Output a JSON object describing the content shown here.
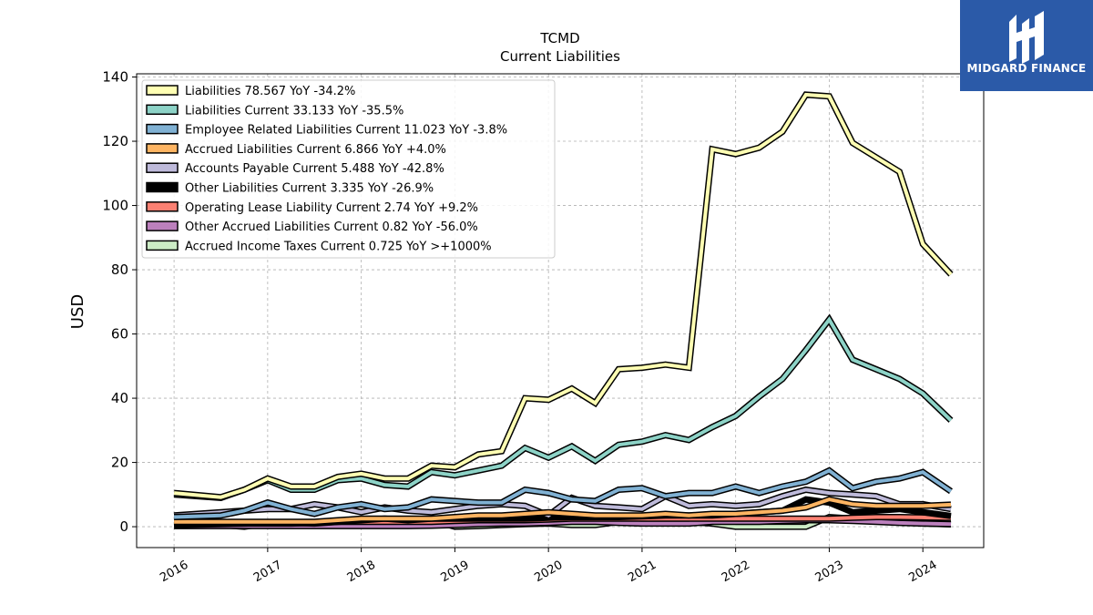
{
  "brand": {
    "name": "MIDGARD FINANCE",
    "bg_color": "#2b5aa8"
  },
  "chart_data": {
    "type": "line",
    "title": "TCMD",
    "subtitle": "Current  Liabilities",
    "ylabel": "USD",
    "xlabel": "",
    "ylim": [
      -6.5,
      141
    ],
    "xlim": [
      2015.6,
      2024.65
    ],
    "x_ticks": [
      2016,
      2017,
      2018,
      2019,
      2020,
      2021,
      2022,
      2023,
      2024
    ],
    "y_ticks": [
      0,
      20,
      40,
      60,
      80,
      100,
      120,
      140
    ],
    "grid": true,
    "legend_position": "top-left",
    "x": [
      2016.0,
      2016.5,
      2016.75,
      2017.0,
      2017.25,
      2017.5,
      2017.75,
      2018.0,
      2018.25,
      2018.5,
      2018.75,
      2019.0,
      2019.25,
      2019.5,
      2019.75,
      2020.0,
      2020.25,
      2020.5,
      2020.75,
      2021.0,
      2021.25,
      2021.5,
      2021.75,
      2022.0,
      2022.25,
      2022.5,
      2022.75,
      2023.0,
      2023.25,
      2023.5,
      2023.75,
      2024.0,
      2024.3
    ],
    "series": [
      {
        "name": "Liabilities  78.567 YoY -34.2%",
        "color": "#ffffb3",
        "values": [
          10.5,
          9.2,
          11.5,
          15.0,
          12.5,
          12.5,
          15.5,
          16.5,
          15.0,
          15.0,
          19.0,
          18.5,
          22.5,
          23.5,
          40.0,
          39.5,
          43.0,
          38.5,
          49.0,
          49.5,
          50.5,
          49.5,
          117.5,
          116.0,
          118.0,
          123.0,
          134.5,
          134.0,
          119.5,
          115.0,
          110.5,
          88.0,
          78.567
        ]
      },
      {
        "name": "Liabilities Current  33.133 YoY -35.5%",
        "color": "#8dd3c7",
        "values": [
          10.0,
          9.0,
          11.5,
          14.5,
          11.5,
          11.5,
          14.5,
          15.0,
          13.0,
          12.5,
          17.0,
          16.0,
          17.5,
          19.0,
          24.5,
          21.5,
          25.0,
          20.5,
          25.5,
          26.5,
          28.5,
          27.0,
          31.0,
          34.5,
          40.5,
          46.0,
          55.0,
          64.5,
          52.0,
          49.0,
          46.0,
          41.5,
          33.133
        ]
      },
      {
        "name": "Employee Related Liabilities Current  11.023 YoY -3.8%",
        "color": "#80b1d3",
        "values": [
          3.0,
          3.5,
          5.0,
          7.5,
          5.5,
          4.0,
          6.0,
          7.0,
          5.5,
          6.0,
          8.5,
          8.0,
          7.5,
          7.5,
          11.5,
          10.5,
          8.5,
          8.0,
          11.5,
          12.0,
          9.5,
          10.5,
          10.5,
          12.5,
          10.5,
          12.5,
          14.0,
          17.5,
          12.0,
          14.0,
          15.0,
          17.0,
          11.023
        ]
      },
      {
        "name": "Accrued Liabilities Current  6.866 YoY +4.0%",
        "color": "#fdb462",
        "values": [
          1.5,
          1.5,
          1.5,
          1.5,
          1.5,
          1.5,
          2.0,
          2.5,
          2.5,
          2.5,
          2.5,
          3.0,
          3.5,
          3.5,
          4.0,
          4.5,
          4.0,
          3.5,
          3.5,
          3.5,
          4.0,
          3.5,
          4.0,
          4.0,
          4.5,
          5.0,
          6.0,
          8.5,
          7.0,
          6.5,
          6.5,
          6.5,
          6.866
        ]
      },
      {
        "name": "Accounts Payable Current  5.488 YoY -42.8%",
        "color": "#bebada",
        "values": [
          3.5,
          4.5,
          5.0,
          5.5,
          5.5,
          7.0,
          6.0,
          4.5,
          6.0,
          5.0,
          4.5,
          5.5,
          6.5,
          7.0,
          6.5,
          3.5,
          9.0,
          6.5,
          6.0,
          5.5,
          9.5,
          6.5,
          7.0,
          6.5,
          7.0,
          9.5,
          11.5,
          10.5,
          10.0,
          9.5,
          7.0,
          7.0,
          5.488
        ]
      },
      {
        "name": "Other Liabilities Current  3.335 YoY -26.9%",
        "color": "#000000",
        "values": [
          0.5,
          0.8,
          1.0,
          1.2,
          1.2,
          1.0,
          1.5,
          2.0,
          2.5,
          2.0,
          2.5,
          2.5,
          2.5,
          2.5,
          2.5,
          2.8,
          3.0,
          3.0,
          3.0,
          3.2,
          3.5,
          3.5,
          3.5,
          4.0,
          4.5,
          5.0,
          8.5,
          7.5,
          4.5,
          5.0,
          5.5,
          4.5,
          3.335
        ]
      },
      {
        "name": "Operating Lease Liability Current  2.74 YoY +9.2%",
        "color": "#fb8072",
        "values": [
          1.0,
          1.0,
          1.0,
          1.0,
          1.0,
          1.2,
          1.5,
          1.5,
          1.5,
          1.5,
          1.5,
          1.8,
          2.0,
          2.0,
          2.0,
          2.2,
          2.5,
          2.5,
          2.5,
          2.5,
          2.5,
          2.5,
          2.5,
          2.5,
          2.5,
          2.5,
          2.5,
          2.5,
          2.8,
          3.0,
          3.0,
          2.9,
          2.74
        ]
      },
      {
        "name": "Other Accrued Liabilities Current  0.82 YoY -56.0%",
        "color": "#bc80bd",
        "values": [
          0.2,
          0.2,
          0.2,
          0.2,
          0.2,
          0.2,
          0.2,
          0.2,
          0.2,
          0.2,
          0.3,
          0.5,
          0.8,
          1.0,
          1.0,
          1.2,
          1.5,
          1.5,
          1.2,
          1.0,
          1.0,
          1.0,
          1.5,
          1.5,
          1.5,
          1.8,
          2.0,
          2.0,
          1.8,
          1.5,
          1.2,
          1.0,
          0.82
        ]
      },
      {
        "name": "Accrued Income Taxes Current  0.725 YoY >+1000%",
        "color": "#ccebc5",
        "values": [
          1.0,
          0.5,
          0.0,
          1.0,
          1.0,
          0.8,
          0.5,
          0.5,
          1.0,
          1.5,
          2.0,
          0.0,
          0.2,
          0.5,
          0.8,
          1.0,
          0.5,
          0.5,
          1.5,
          2.5,
          3.0,
          1.5,
          1.0,
          0.0,
          0.0,
          0.0,
          0.0,
          3.0,
          2.5,
          2.0,
          2.0,
          1.0,
          0.725
        ]
      }
    ]
  }
}
